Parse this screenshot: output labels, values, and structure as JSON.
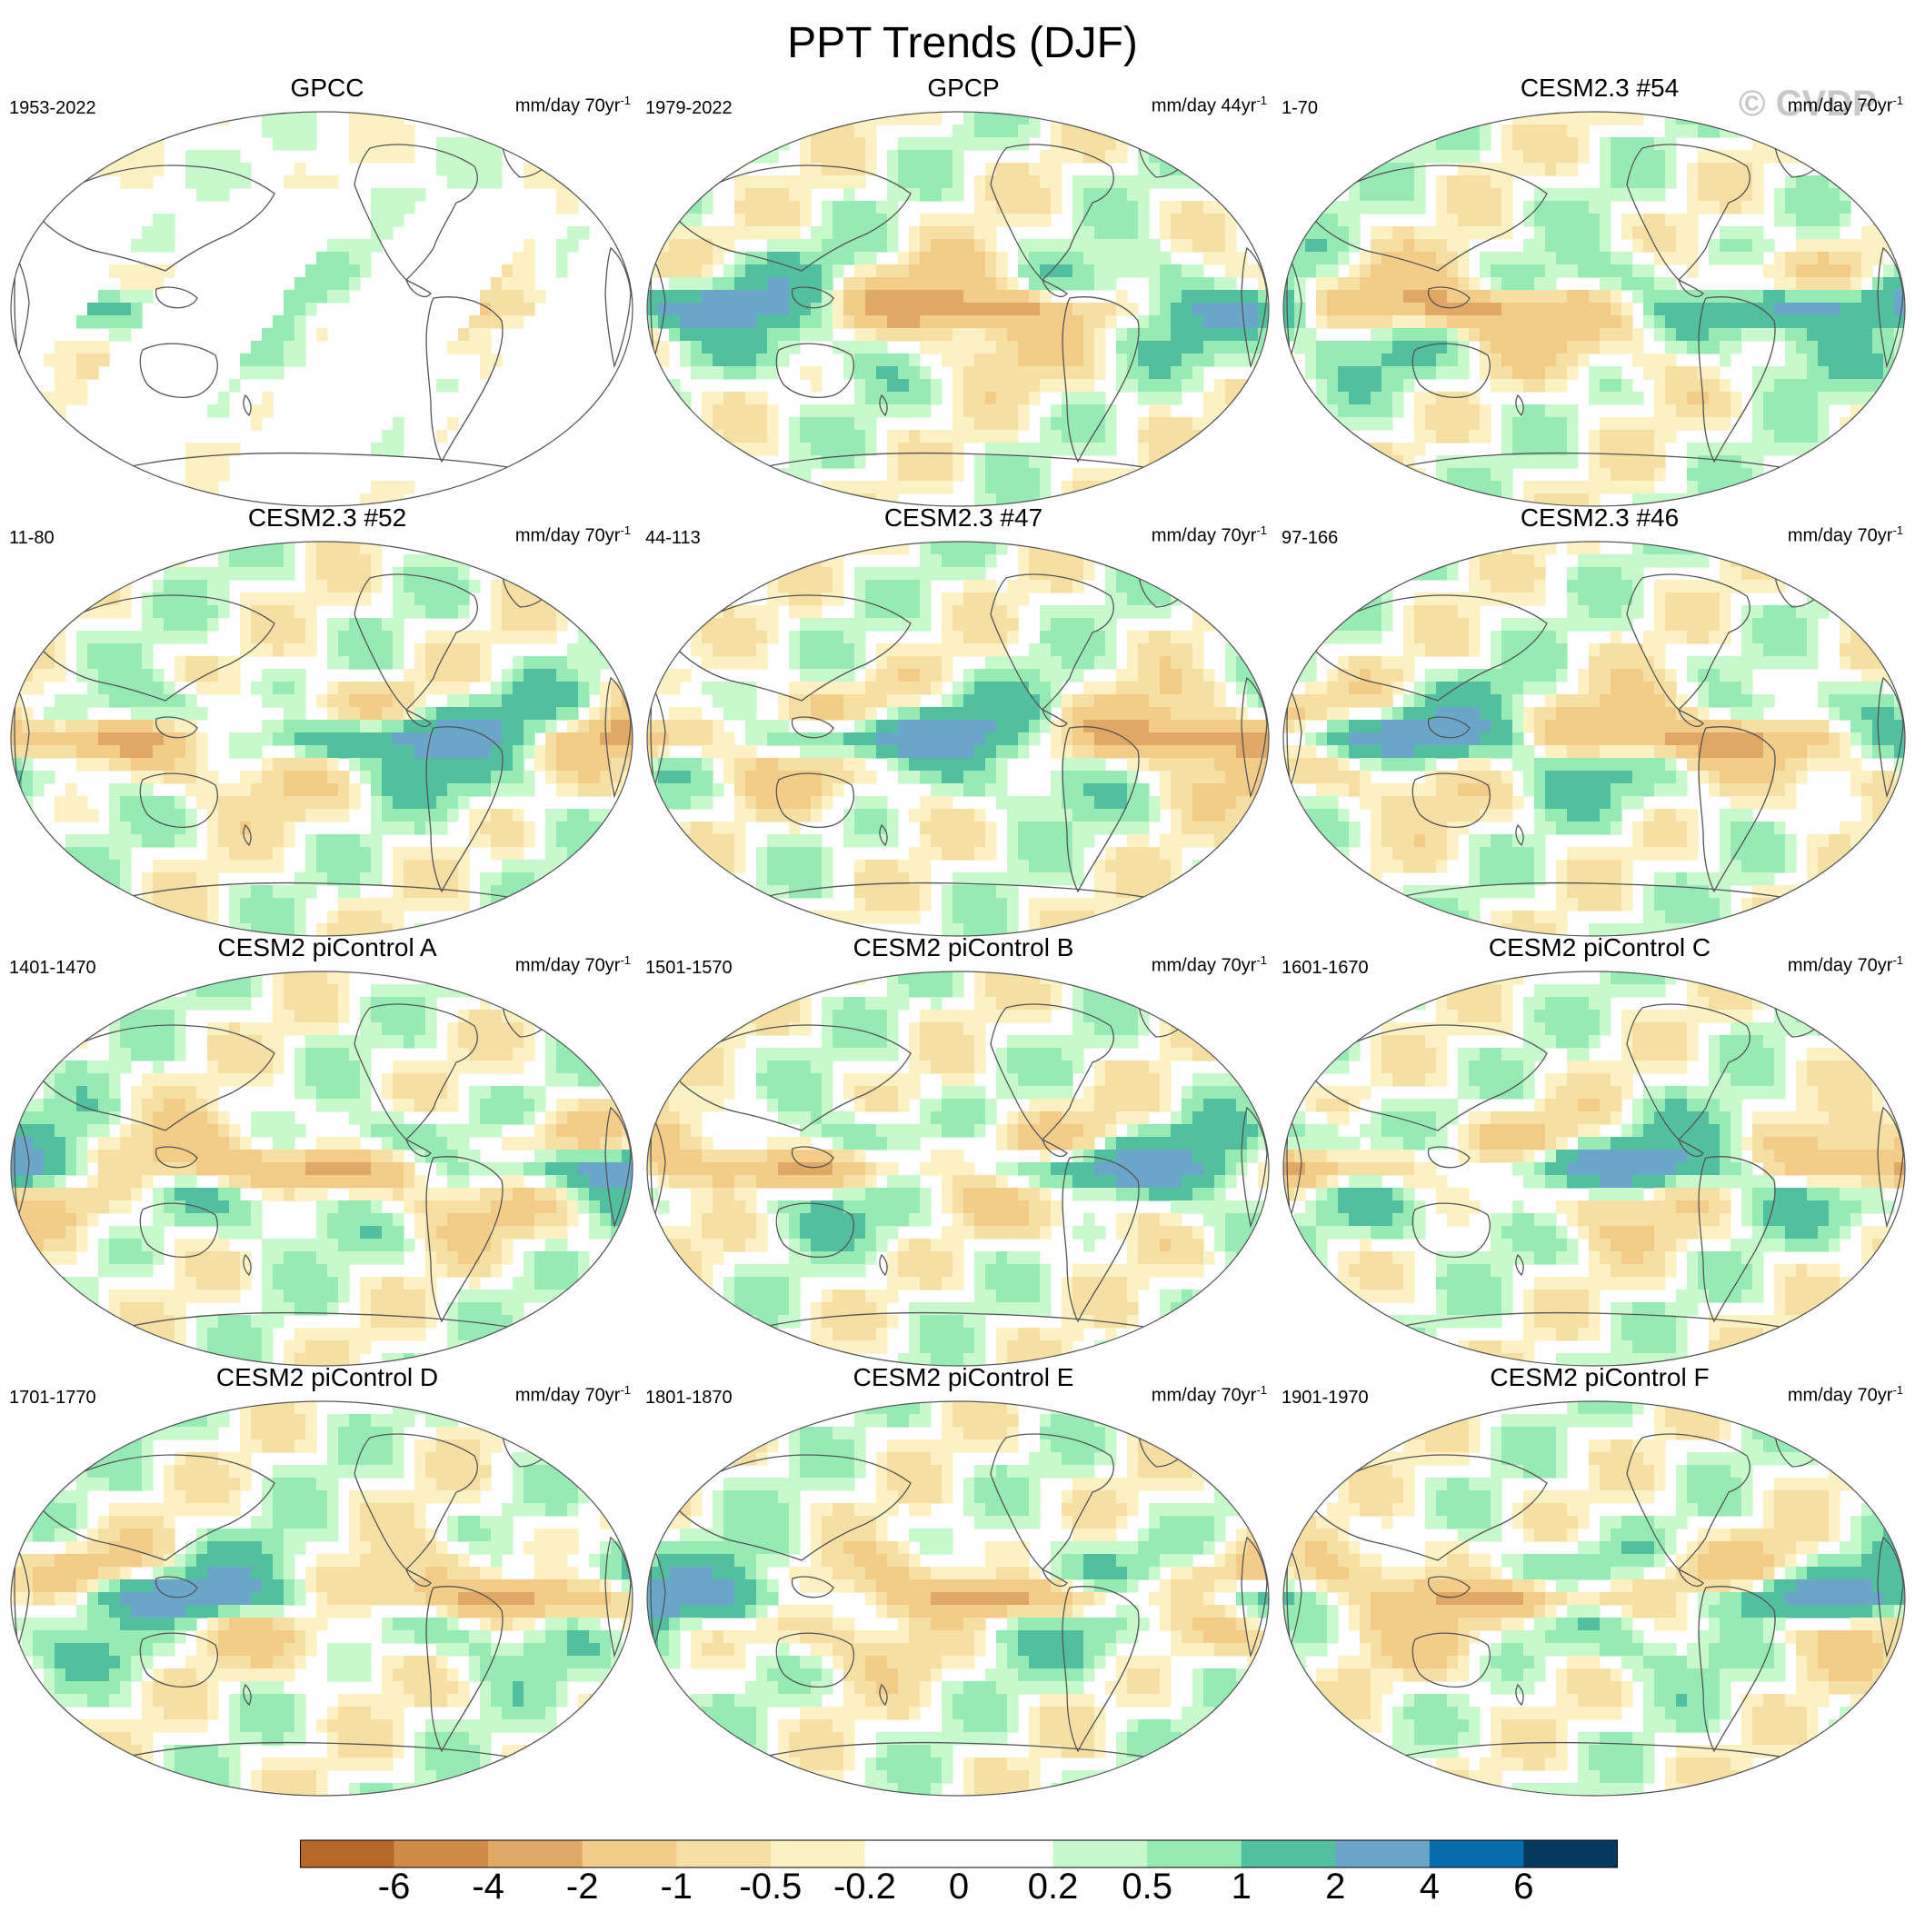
{
  "title": "PPT Trends (DJF)",
  "watermark": "© CVDP",
  "colors": {
    "brown_dark": "#b5682a",
    "brown": "#cf8c47",
    "tan": "#e0a865",
    "tan_light": "#f2cc88",
    "beige": "#f5dfa2",
    "cream": "#fcf1c2",
    "white": "#ffffff",
    "mint": "#c8f9cc",
    "green_light": "#96ebb4",
    "teal": "#52bf9e",
    "steel_blue": "#6aa6c8",
    "blue": "#076cac",
    "navy": "#043a5e",
    "coast": "#555555"
  },
  "chart_data": {
    "type": "heatmap",
    "title": "PPT Trends (DJF)",
    "projection": "Robinson (global, Pacific-centered)",
    "units_prefix": "mm/day",
    "colorbar": {
      "levels": [
        -6,
        -4,
        -2,
        -1,
        -0.5,
        -0.2,
        0,
        0.2,
        0.5,
        1,
        2,
        4,
        6
      ],
      "tick_labels": [
        "-6",
        "-4",
        "-2",
        "-1",
        "-0.5",
        "-0.2",
        "0",
        "0.2",
        "0.5",
        "1",
        "2",
        "4",
        "6"
      ],
      "bin_colors": [
        "#b5682a",
        "#cf8c47",
        "#e0a865",
        "#f2cc88",
        "#f5dfa2",
        "#fcf1c2",
        "#ffffff",
        "#ffffff",
        "#c8f9cc",
        "#96ebb4",
        "#52bf9e",
        "#6aa6c8",
        "#076cac",
        "#043a5e"
      ]
    },
    "panels": [
      {
        "title": "GPCC",
        "period": "1953-2022",
        "units": "mm/day 70yr",
        "units_exp": "-1"
      },
      {
        "title": "GPCP",
        "period": "1979-2022",
        "units": "mm/day 44yr",
        "units_exp": "-1"
      },
      {
        "title": "CESM2.3 #54",
        "period": "1-70",
        "units": "mm/day 70yr",
        "units_exp": "-1"
      },
      {
        "title": "CESM2.3 #52",
        "period": "11-80",
        "units": "mm/day 70yr",
        "units_exp": "-1"
      },
      {
        "title": "CESM2.3 #47",
        "period": "44-113",
        "units": "mm/day 70yr",
        "units_exp": "-1"
      },
      {
        "title": "CESM2.3 #46",
        "period": "97-166",
        "units": "mm/day 70yr",
        "units_exp": "-1"
      },
      {
        "title": "CESM2 piControl A",
        "period": "1401-1470",
        "units": "mm/day 70yr",
        "units_exp": "-1"
      },
      {
        "title": "CESM2 piControl B",
        "period": "1501-1570",
        "units": "mm/day 70yr",
        "units_exp": "-1"
      },
      {
        "title": "CESM2 piControl C",
        "period": "1601-1670",
        "units": "mm/day 70yr",
        "units_exp": "-1"
      },
      {
        "title": "CESM2 piControl D",
        "period": "1701-1770",
        "units": "mm/day 70yr",
        "units_exp": "-1"
      },
      {
        "title": "CESM2 piControl E",
        "period": "1801-1870",
        "units": "mm/day 70yr",
        "units_exp": "-1"
      },
      {
        "title": "CESM2 piControl F",
        "period": "1901-1970",
        "units": "mm/day 70yr",
        "units_exp": "-1"
      }
    ]
  }
}
